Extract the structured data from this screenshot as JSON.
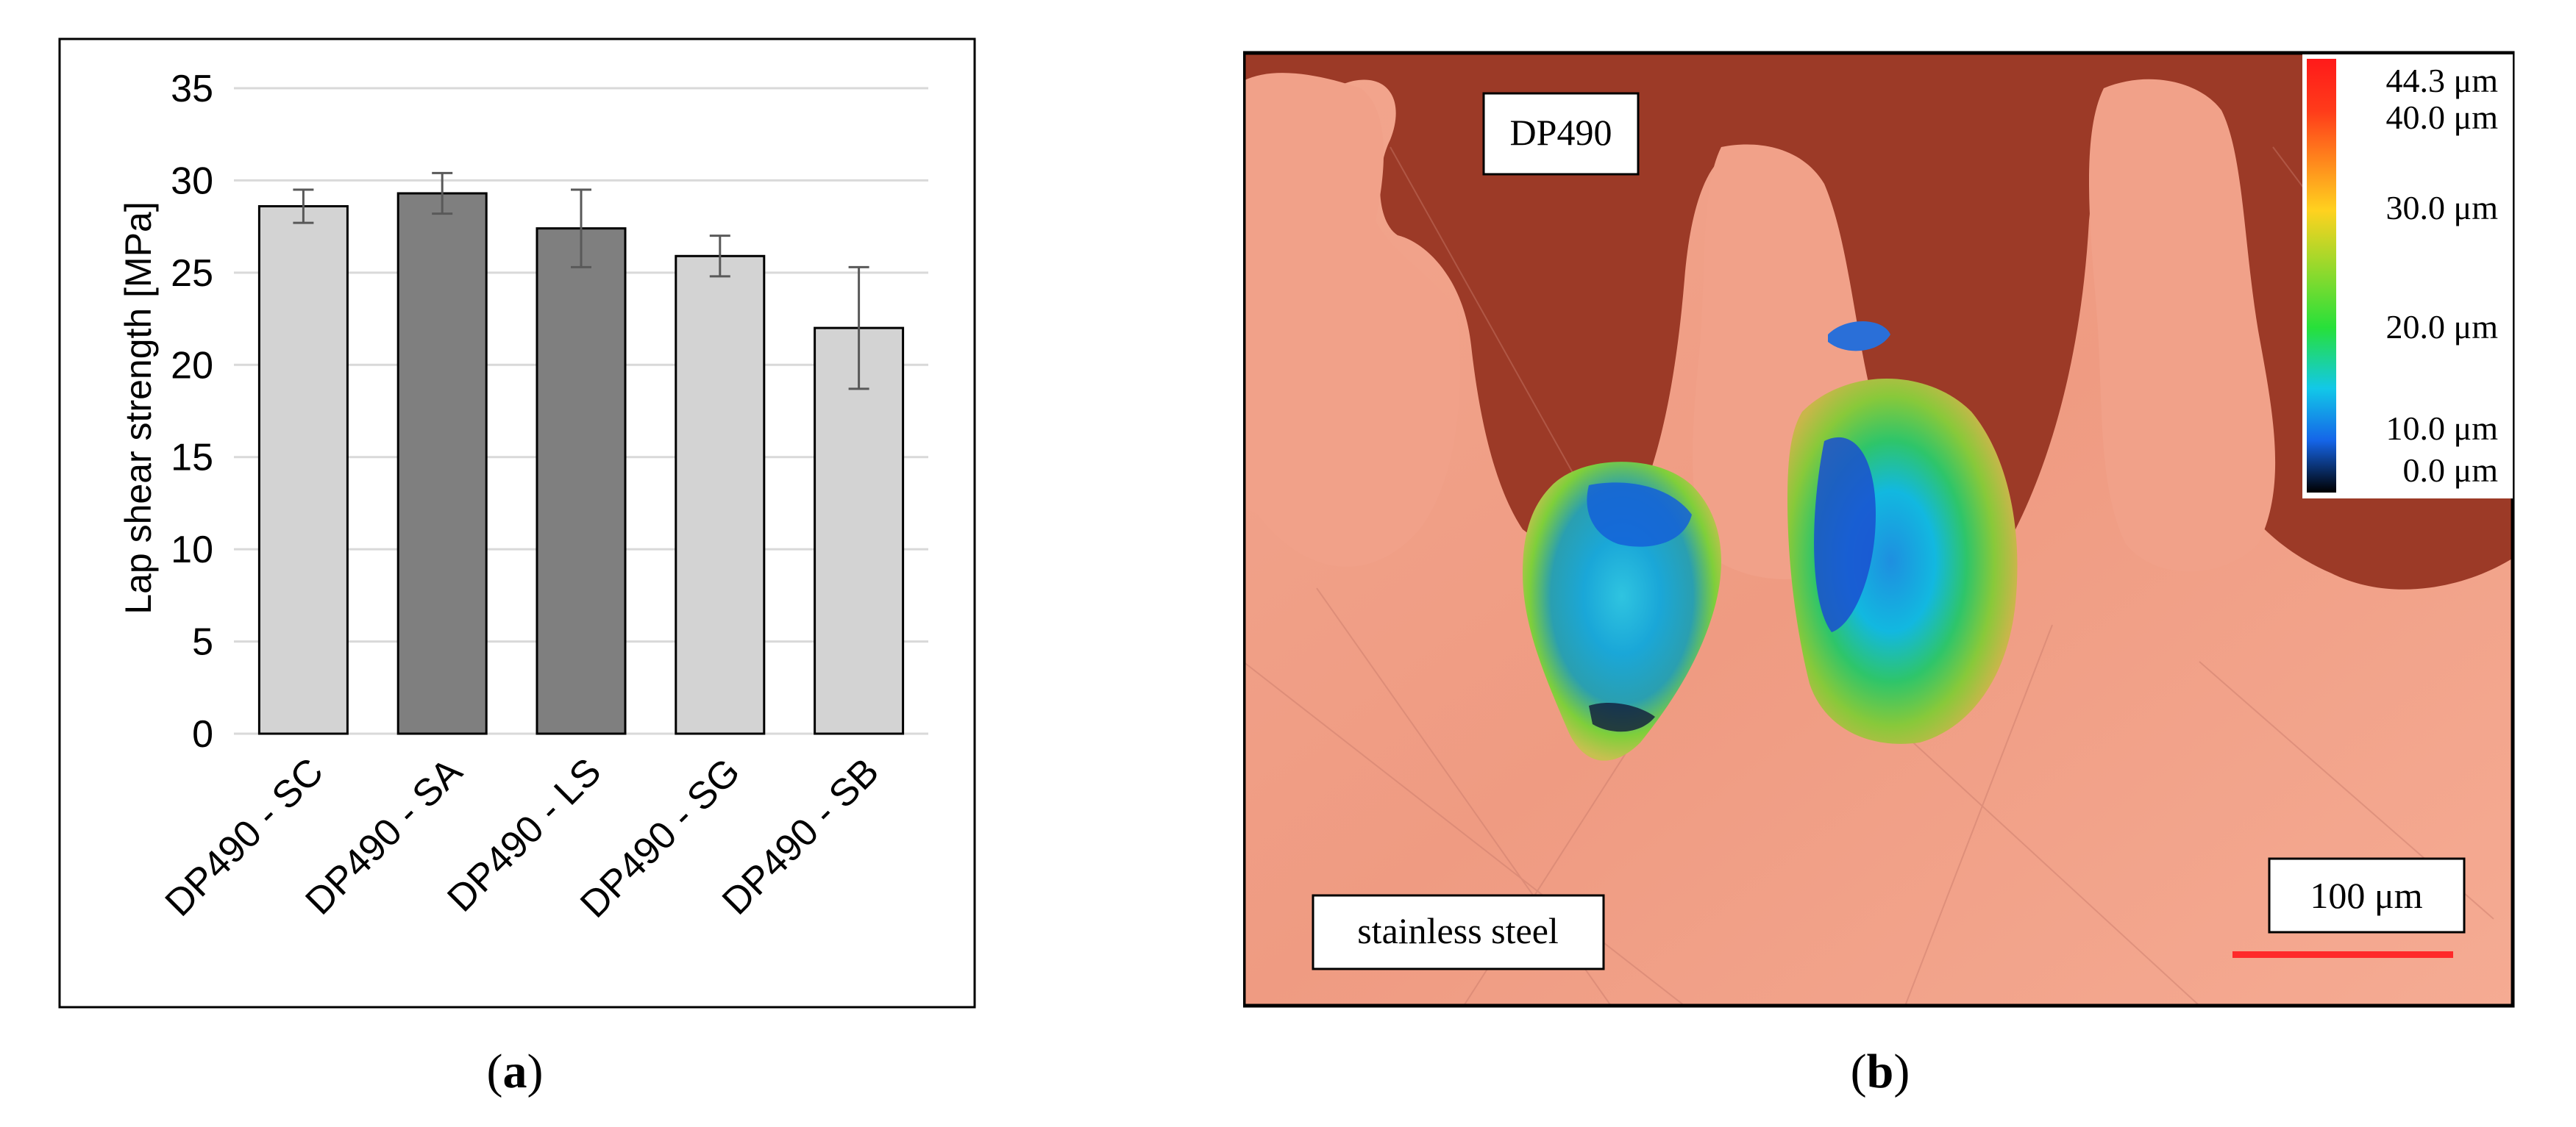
{
  "chart_data": {
    "type": "bar",
    "title": "",
    "xlabel": "",
    "ylabel": "Lap shear strength [MPa]",
    "ylim": [
      0,
      35
    ],
    "yticks": [
      0,
      5,
      10,
      15,
      20,
      25,
      30,
      35
    ],
    "grid": true,
    "legend": "none",
    "categories": [
      "DP490 - SC",
      "DP490 - SA",
      "DP490 - LS",
      "DP490 - SG",
      "DP490 - SB"
    ],
    "values": [
      28.6,
      29.3,
      27.4,
      25.9,
      22.0
    ],
    "errors": [
      0.9,
      1.1,
      2.1,
      1.1,
      3.3
    ],
    "bar_colors": [
      "#d3d3d3",
      "#7f7f7f",
      "#7f7f7f",
      "#d3d3d3",
      "#d3d3d3"
    ]
  },
  "panel_a": {
    "caption": "a"
  },
  "panel_b": {
    "caption": "b",
    "labels": {
      "adhesive": "DP490",
      "substrate": "stainless steel"
    },
    "scale_bar": {
      "label": "100 μm",
      "color": "#ff2a2a"
    },
    "colorbar": {
      "ticks": [
        "44.3 μm",
        "40.0 μm",
        "30.0 μm",
        "20.0 μm",
        "10.0 μm",
        "0.0 μm"
      ],
      "colors": [
        "#ff1a1a",
        "#ff3b1a",
        "#ffd21f",
        "#27e03a",
        "#12c8e8",
        "#1565e8",
        "#000000"
      ]
    },
    "colors": {
      "steel": "#f09a82",
      "adhesive": "#9e3a28"
    }
  }
}
